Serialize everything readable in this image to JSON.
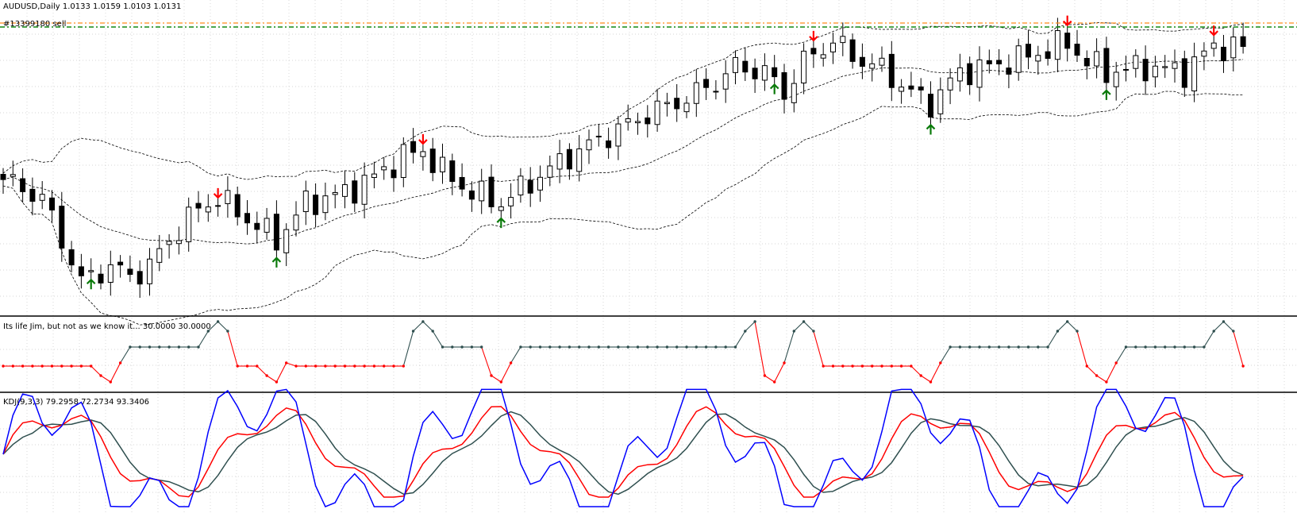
{
  "main_label": "AUDUSD,Daily  1.0133 1.0159 1.0103 1.0131",
  "order_label": "#13399180 sell",
  "osc_label": "Its life Jim, but not as we know it...  30.0000 30.0000",
  "kdj_label": "KDJ(9,3,3) 79.2958 72.2734 93.3406",
  "colors": {
    "background": "#ffffff",
    "grid": "#c8c8c8",
    "candle": "#000000",
    "band": "#000000",
    "order_line_orange": "#ff8c1a",
    "order_line_green": "#138a13",
    "arrow_down": "#ff0000",
    "arrow_up": "#0a7a0a",
    "osc_low": "#ff0000",
    "osc_high": "#2f4f4f",
    "kdj_k": "#ff0000",
    "kdj_d": "#2f4f4f",
    "kdj_j": "#0000ff"
  },
  "chart_data": [
    {
      "type": "candlestick",
      "symbol": "AUDUSD",
      "timeframe": "Daily",
      "ohlc_current": {
        "open": 1.0133,
        "high": 1.0159,
        "low": 1.0103,
        "close": 1.0131
      },
      "indicators": [
        "bollinger_bands"
      ],
      "order_line": "#13399180 sell",
      "signals": [
        {
          "bar": 9,
          "dir": "up"
        },
        {
          "bar": 22,
          "dir": "down"
        },
        {
          "bar": 28,
          "dir": "up"
        },
        {
          "bar": 43,
          "dir": "down"
        },
        {
          "bar": 51,
          "dir": "up"
        },
        {
          "bar": 79,
          "dir": "up"
        },
        {
          "bar": 83,
          "dir": "down"
        },
        {
          "bar": 95,
          "dir": "up"
        },
        {
          "bar": 109,
          "dir": "down"
        },
        {
          "bar": 113,
          "dir": "up"
        },
        {
          "bar": 124,
          "dir": "down"
        }
      ]
    },
    {
      "type": "line",
      "title": "Its life Jim, but not as we know it...",
      "levels": [
        30.0,
        30.0
      ]
    },
    {
      "type": "line",
      "title": "KDJ(9,3,3)",
      "series": [
        {
          "name": "K",
          "last": 79.2958
        },
        {
          "name": "D",
          "last": 72.2734
        },
        {
          "name": "J",
          "last": 93.3406
        }
      ]
    }
  ]
}
